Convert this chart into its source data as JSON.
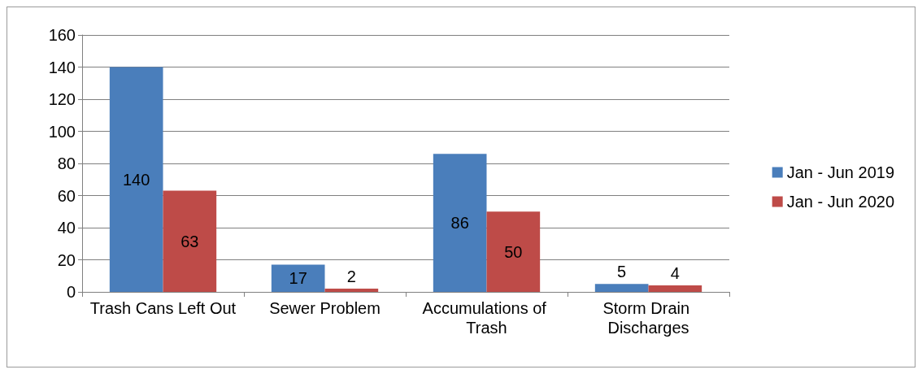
{
  "chart_data": {
    "type": "bar",
    "categories": [
      "Trash Cans Left Out",
      "Sewer Problem",
      "Accumulations of Trash",
      "Storm Drain Discharges"
    ],
    "series": [
      {
        "name": "Jan - Jun 2019",
        "color": "#4a7ebb",
        "values": [
          140,
          17,
          86,
          5
        ]
      },
      {
        "name": "Jan - Jun 2020",
        "color": "#be4b48",
        "values": [
          63,
          2,
          50,
          4
        ]
      }
    ],
    "ylim": [
      0,
      160
    ],
    "yticks": [
      0,
      20,
      40,
      60,
      80,
      100,
      120,
      140,
      160
    ],
    "grid": "y",
    "legend": "right",
    "data_labels": true
  }
}
